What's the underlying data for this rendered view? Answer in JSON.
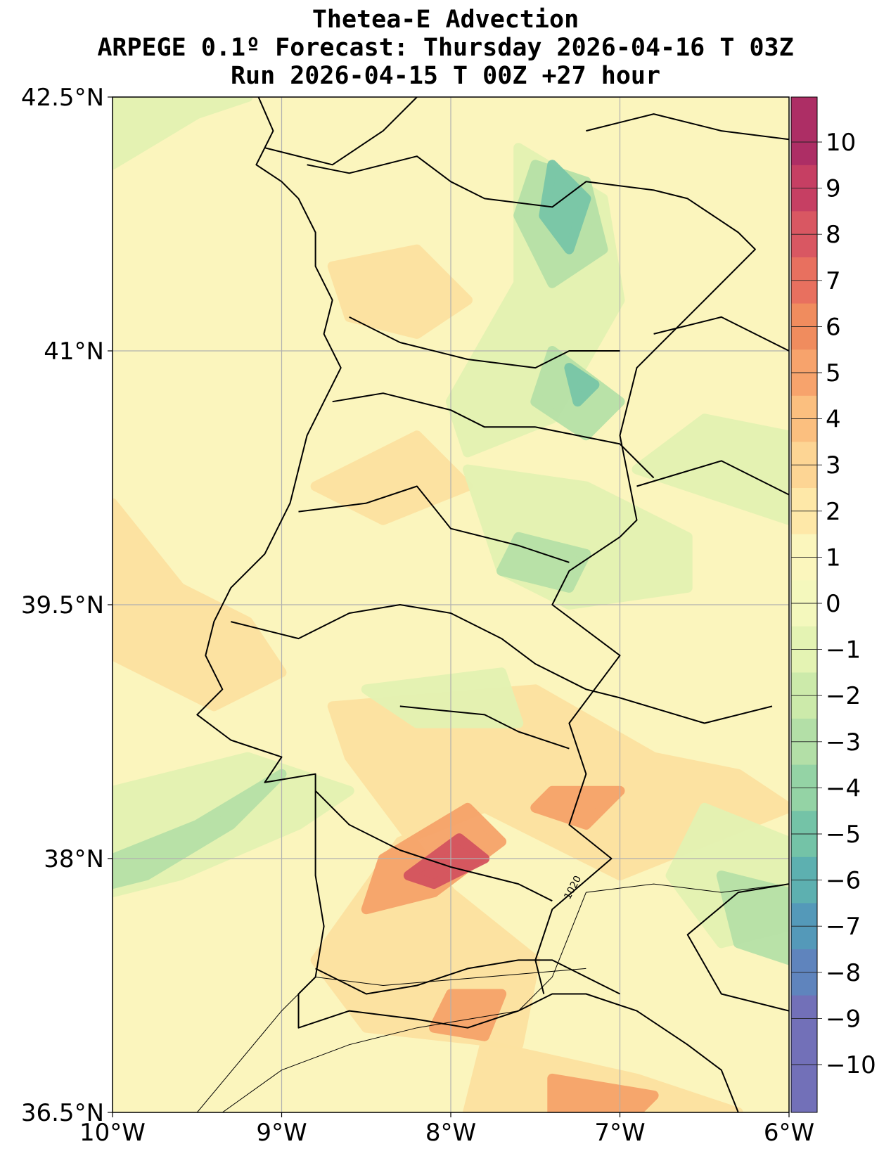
{
  "title": {
    "line1": "Thetea-E Advection",
    "line2": "ARPEGE 0.1º Forecast: Thursday 2026-04-16 T 03Z",
    "line3": "Run 2026-04-15 T 00Z +27 hour"
  },
  "map": {
    "extent": {
      "lon": [
        -10,
        -6
      ],
      "lat": [
        36.5,
        42.5
      ]
    },
    "lon_ticks": [
      {
        "value": -10,
        "label": "10°W"
      },
      {
        "value": -9,
        "label": "9°W"
      },
      {
        "value": -8,
        "label": "8°W"
      },
      {
        "value": -7,
        "label": "7°W"
      },
      {
        "value": -6,
        "label": "6°W"
      }
    ],
    "lat_ticks": [
      {
        "value": 42.5,
        "label": "42.5°N"
      },
      {
        "value": 41,
        "label": "41°N"
      },
      {
        "value": 39.5,
        "label": "39.5°N"
      },
      {
        "value": 38,
        "label": "38°N"
      },
      {
        "value": 36.5,
        "label": "36.5°N"
      }
    ],
    "gridlines": true,
    "isobar_label": "1020",
    "background_color": "#fbf5bd"
  },
  "colorbar": {
    "ticks": [
      10,
      9,
      8,
      7,
      6,
      5,
      4,
      3,
      2,
      1,
      0,
      -1,
      -2,
      -3,
      -4,
      -5,
      -6,
      -7,
      -8,
      -9,
      -10
    ],
    "labels": [
      "10",
      "9",
      "8",
      "7",
      "6",
      "5",
      "4",
      "3",
      "2",
      "1",
      "0",
      "−1",
      "−2",
      "−3",
      "−4",
      "−5",
      "−6",
      "−7",
      "−8",
      "−9",
      "−10"
    ],
    "colors_top_to_bottom": [
      "#ad2e65",
      "#c63f63",
      "#d95762",
      "#e8705f",
      "#f08c5e",
      "#f7a36c",
      "#fbbf7f",
      "#fdd594",
      "#fee8a8",
      "#fbf6bd",
      "#f4f8bd",
      "#e4f3b3",
      "#cceaaa",
      "#b3dfa7",
      "#94d3a5",
      "#74c3a7",
      "#5db0b0",
      "#5499b9",
      "#5f84bd",
      "#7270b8"
    ]
  },
  "contour_fields": [
    {
      "level": "warm",
      "color": "#fde2a0",
      "polys": [
        [
          [
            -10,
            40.1
          ],
          [
            -9.6,
            39.6
          ],
          [
            -9.2,
            39.4
          ],
          [
            -9.0,
            39.1
          ],
          [
            -9.4,
            38.9
          ],
          [
            -10,
            39.2
          ]
        ],
        [
          [
            -8.7,
            41.5
          ],
          [
            -8.2,
            41.6
          ],
          [
            -7.9,
            41.3
          ],
          [
            -8.2,
            41.1
          ],
          [
            -8.6,
            41.2
          ]
        ],
        [
          [
            -8.8,
            40.2
          ],
          [
            -8.2,
            40.5
          ],
          [
            -7.9,
            40.2
          ],
          [
            -8.4,
            40.0
          ]
        ],
        [
          [
            -8.7,
            38.9
          ],
          [
            -7.5,
            39.0
          ],
          [
            -6.8,
            38.6
          ],
          [
            -6.3,
            38.5
          ],
          [
            -6.0,
            38.3
          ],
          [
            -7.0,
            37.9
          ],
          [
            -7.8,
            38.3
          ],
          [
            -8.3,
            38.1
          ],
          [
            -8.8,
            37.4
          ],
          [
            -8.5,
            37.0
          ],
          [
            -7.6,
            36.9
          ],
          [
            -7.5,
            37.4
          ],
          [
            -8.0,
            37.8
          ],
          [
            -8.6,
            38.6
          ]
        ],
        [
          [
            -7.8,
            36.9
          ],
          [
            -6.9,
            36.7
          ],
          [
            -6.3,
            36.5
          ],
          [
            -7.9,
            36.5
          ]
        ]
      ]
    },
    {
      "level": "cool",
      "color": "#e3f2b2",
      "polys": [
        [
          [
            -10,
            42.1
          ],
          [
            -9.5,
            42.4
          ],
          [
            -9.2,
            42.5
          ],
          [
            -10,
            42.5
          ]
        ],
        [
          [
            -7.6,
            42.2
          ],
          [
            -7.1,
            41.9
          ],
          [
            -7.0,
            41.3
          ],
          [
            -7.4,
            40.6
          ],
          [
            -7.9,
            40.4
          ],
          [
            -8.0,
            40.7
          ],
          [
            -7.6,
            41.4
          ]
        ],
        [
          [
            -7.9,
            40.3
          ],
          [
            -7.2,
            40.2
          ],
          [
            -6.6,
            39.9
          ],
          [
            -6.6,
            39.6
          ],
          [
            -7.3,
            39.5
          ],
          [
            -7.7,
            39.7
          ]
        ],
        [
          [
            -10,
            38.4
          ],
          [
            -9.2,
            38.6
          ],
          [
            -8.6,
            38.4
          ],
          [
            -8.9,
            38.2
          ],
          [
            -9.6,
            37.9
          ],
          [
            -10,
            37.8
          ]
        ],
        [
          [
            -6.5,
            38.3
          ],
          [
            -6.0,
            38.1
          ],
          [
            -6.0,
            37.6
          ],
          [
            -6.4,
            37.5
          ],
          [
            -6.7,
            37.9
          ]
        ],
        [
          [
            -8.5,
            39.0
          ],
          [
            -7.7,
            39.1
          ],
          [
            -7.6,
            38.8
          ],
          [
            -8.2,
            38.8
          ]
        ],
        [
          [
            -6.9,
            40.3
          ],
          [
            -6.0,
            40.0
          ],
          [
            -6.0,
            40.5
          ],
          [
            -6.5,
            40.6
          ]
        ]
      ]
    },
    {
      "level": "cold",
      "color": "#b6e1a7",
      "polys": [
        [
          [
            -7.5,
            42.1
          ],
          [
            -7.2,
            42.0
          ],
          [
            -7.1,
            41.6
          ],
          [
            -7.4,
            41.4
          ],
          [
            -7.6,
            41.8
          ]
        ],
        [
          [
            -7.4,
            41.0
          ],
          [
            -7.0,
            40.7
          ],
          [
            -7.2,
            40.5
          ],
          [
            -7.5,
            40.7
          ]
        ],
        [
          [
            -7.6,
            39.9
          ],
          [
            -7.2,
            39.8
          ],
          [
            -7.3,
            39.6
          ],
          [
            -7.7,
            39.7
          ]
        ],
        [
          [
            -10,
            38.0
          ],
          [
            -9.5,
            38.2
          ],
          [
            -9.0,
            38.5
          ],
          [
            -9.3,
            38.2
          ],
          [
            -9.8,
            37.9
          ],
          [
            -10,
            37.85
          ]
        ],
        [
          [
            -6.4,
            37.9
          ],
          [
            -6.0,
            37.8
          ],
          [
            -6.0,
            37.4
          ],
          [
            -6.3,
            37.5
          ]
        ]
      ]
    },
    {
      "level": "very-cold",
      "color": "#78c6a7",
      "polys": [
        [
          [
            -7.4,
            42.1
          ],
          [
            -7.2,
            41.9
          ],
          [
            -7.3,
            41.6
          ],
          [
            -7.45,
            41.8
          ]
        ],
        [
          [
            -7.3,
            40.9
          ],
          [
            -7.15,
            40.8
          ],
          [
            -7.25,
            40.7
          ]
        ]
      ]
    },
    {
      "level": "hot",
      "color": "#f6a36a",
      "polys": [
        [
          [
            -8.4,
            38.0
          ],
          [
            -7.9,
            38.3
          ],
          [
            -7.7,
            38.1
          ],
          [
            -8.1,
            37.8
          ],
          [
            -8.5,
            37.7
          ]
        ],
        [
          [
            -8.0,
            37.2
          ],
          [
            -7.7,
            37.2
          ],
          [
            -7.8,
            36.95
          ],
          [
            -8.1,
            37.0
          ]
        ],
        [
          [
            -7.4,
            38.4
          ],
          [
            -7.0,
            38.4
          ],
          [
            -7.2,
            38.2
          ],
          [
            -7.5,
            38.3
          ]
        ],
        [
          [
            -7.4,
            36.7
          ],
          [
            -6.8,
            36.6
          ],
          [
            -6.9,
            36.5
          ],
          [
            -7.4,
            36.5
          ]
        ]
      ]
    },
    {
      "level": "very-hot",
      "color": "#d4535f",
      "polys": [
        [
          [
            -8.25,
            37.9
          ],
          [
            -7.95,
            38.12
          ],
          [
            -7.8,
            38.0
          ],
          [
            -8.1,
            37.85
          ]
        ]
      ]
    }
  ],
  "land_lines": [
    [
      [
        -9.15,
        42.53
      ],
      [
        -9.05,
        42.3
      ],
      [
        -9.15,
        42.1
      ],
      [
        -9.0,
        42.0
      ],
      [
        -8.9,
        41.9
      ],
      [
        -8.8,
        41.7
      ],
      [
        -8.8,
        41.5
      ],
      [
        -8.7,
        41.3
      ],
      [
        -8.75,
        41.1
      ],
      [
        -8.65,
        40.9
      ],
      [
        -8.75,
        40.7
      ],
      [
        -8.85,
        40.5
      ],
      [
        -8.9,
        40.3
      ],
      [
        -8.95,
        40.1
      ],
      [
        -9.1,
        39.8
      ],
      [
        -9.3,
        39.6
      ],
      [
        -9.4,
        39.4
      ],
      [
        -9.45,
        39.2
      ],
      [
        -9.35,
        39.0
      ],
      [
        -9.5,
        38.85
      ],
      [
        -9.3,
        38.7
      ],
      [
        -9.0,
        38.6
      ],
      [
        -9.1,
        38.45
      ],
      [
        -8.8,
        38.5
      ],
      [
        -8.8,
        38.2
      ],
      [
        -8.8,
        37.9
      ],
      [
        -8.75,
        37.6
      ],
      [
        -8.8,
        37.3
      ],
      [
        -8.9,
        37.2
      ],
      [
        -8.9,
        37.0
      ],
      [
        -8.6,
        37.1
      ],
      [
        -8.2,
        37.05
      ],
      [
        -7.9,
        37.0
      ],
      [
        -7.6,
        37.1
      ],
      [
        -7.4,
        37.2
      ],
      [
        -7.2,
        37.2
      ],
      [
        -6.9,
        37.1
      ],
      [
        -6.6,
        36.9
      ],
      [
        -6.4,
        36.75
      ],
      [
        -6.3,
        36.5
      ]
    ],
    [
      [
        -8.85,
        42.1
      ],
      [
        -8.6,
        42.05
      ],
      [
        -8.2,
        42.15
      ],
      [
        -8.0,
        42.0
      ],
      [
        -7.8,
        41.9
      ],
      [
        -7.4,
        41.85
      ],
      [
        -7.2,
        42.0
      ],
      [
        -6.8,
        41.95
      ],
      [
        -6.6,
        41.9
      ],
      [
        -6.3,
        41.7
      ],
      [
        -6.2,
        41.6
      ],
      [
        -6.5,
        41.3
      ],
      [
        -6.7,
        41.1
      ],
      [
        -6.9,
        40.9
      ],
      [
        -7.0,
        40.5
      ],
      [
        -6.9,
        40.0
      ],
      [
        -7.0,
        39.9
      ],
      [
        -7.3,
        39.7
      ],
      [
        -7.4,
        39.5
      ],
      [
        -7.0,
        39.2
      ],
      [
        -7.3,
        38.8
      ],
      [
        -7.2,
        38.5
      ],
      [
        -7.3,
        38.2
      ],
      [
        -7.05,
        38.0
      ],
      [
        -7.4,
        37.7
      ],
      [
        -7.5,
        37.4
      ],
      [
        -7.45,
        37.2
      ]
    ],
    [
      [
        -8.6,
        41.2
      ],
      [
        -8.3,
        41.05
      ],
      [
        -7.9,
        40.95
      ],
      [
        -7.5,
        40.9
      ],
      [
        -7.3,
        41.0
      ],
      [
        -7.0,
        41.0
      ]
    ],
    [
      [
        -8.7,
        40.7
      ],
      [
        -8.4,
        40.75
      ],
      [
        -8.0,
        40.65
      ],
      [
        -7.8,
        40.55
      ],
      [
        -7.5,
        40.55
      ],
      [
        -7.0,
        40.45
      ],
      [
        -6.8,
        40.25
      ]
    ],
    [
      [
        -8.9,
        40.05
      ],
      [
        -8.5,
        40.1
      ],
      [
        -8.2,
        40.2
      ],
      [
        -8.0,
        39.95
      ],
      [
        -7.6,
        39.85
      ],
      [
        -7.3,
        39.75
      ]
    ],
    [
      [
        -9.3,
        39.4
      ],
      [
        -8.9,
        39.3
      ],
      [
        -8.6,
        39.45
      ],
      [
        -8.3,
        39.5
      ],
      [
        -8.0,
        39.45
      ],
      [
        -7.7,
        39.3
      ],
      [
        -7.5,
        39.15
      ],
      [
        -7.2,
        39.0
      ],
      [
        -7.0,
        38.95
      ],
      [
        -6.5,
        38.8
      ],
      [
        -6.1,
        38.9
      ]
    ],
    [
      [
        -8.8,
        38.4
      ],
      [
        -8.6,
        38.2
      ],
      [
        -8.3,
        38.05
      ],
      [
        -8.0,
        37.95
      ],
      [
        -7.6,
        37.85
      ],
      [
        -7.4,
        37.75
      ]
    ],
    [
      [
        -8.8,
        37.35
      ],
      [
        -8.5,
        37.2
      ],
      [
        -8.2,
        37.25
      ],
      [
        -7.9,
        37.35
      ],
      [
        -7.6,
        37.4
      ],
      [
        -7.4,
        37.4
      ],
      [
        -7.0,
        37.2
      ]
    ],
    [
      [
        -9.1,
        42.2
      ],
      [
        -8.7,
        42.1
      ],
      [
        -8.4,
        42.3
      ],
      [
        -8.2,
        42.5
      ]
    ],
    [
      [
        -7.2,
        42.3
      ],
      [
        -6.8,
        42.4
      ],
      [
        -6.4,
        42.3
      ],
      [
        -6.0,
        42.25
      ]
    ],
    [
      [
        -6.8,
        41.1
      ],
      [
        -6.4,
        41.2
      ],
      [
        -6.0,
        41.0
      ]
    ],
    [
      [
        -6.9,
        40.2
      ],
      [
        -6.4,
        40.35
      ],
      [
        -6.0,
        40.15
      ]
    ],
    [
      [
        -6.0,
        37.85
      ],
      [
        -6.3,
        37.8
      ],
      [
        -6.6,
        37.55
      ],
      [
        -6.4,
        37.2
      ],
      [
        -6.0,
        37.1
      ]
    ],
    [
      [
        -8.3,
        38.9
      ],
      [
        -7.8,
        38.85
      ],
      [
        -7.6,
        38.75
      ],
      [
        -7.3,
        38.65
      ]
    ]
  ],
  "isobar_lines": [
    [
      [
        -9.35,
        36.5
      ],
      [
        -9.0,
        36.75
      ],
      [
        -8.6,
        36.9
      ],
      [
        -8.2,
        37.0
      ],
      [
        -7.6,
        37.1
      ],
      [
        -7.4,
        37.3
      ],
      [
        -7.3,
        37.55
      ],
      [
        -7.2,
        37.8
      ],
      [
        -6.8,
        37.85
      ],
      [
        -6.4,
        37.8
      ],
      [
        -6.0,
        37.85
      ]
    ],
    [
      [
        -9.5,
        36.5
      ],
      [
        -9.0,
        37.1
      ],
      [
        -8.8,
        37.3
      ],
      [
        -8.4,
        37.25
      ],
      [
        -7.8,
        37.3
      ],
      [
        -7.2,
        37.35
      ]
    ]
  ]
}
